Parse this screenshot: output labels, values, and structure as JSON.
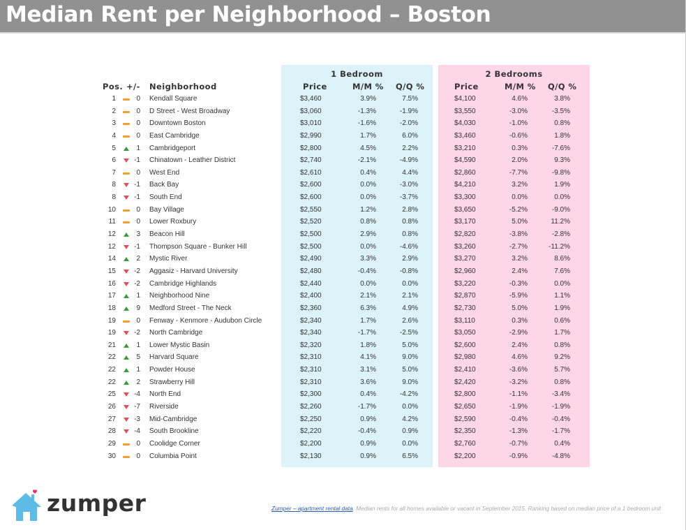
{
  "title": "Median Rent per Neighborhood – Boston",
  "headers": {
    "pos": "Pos.",
    "change": "+/-",
    "neighborhood": "Neighborhood",
    "group1": "1 Bedroom",
    "group2": "2 Bedrooms",
    "price": "Price",
    "mm": "M/M %",
    "qq": "Q/Q %"
  },
  "colors": {
    "panel1_bg": "#dcf3fa",
    "panel2_bg": "#fdd6e8",
    "up": "#3a9a3a",
    "down": "#d9535b",
    "flat": "#f0a030",
    "title_bg": "#919191"
  },
  "rows": [
    {
      "pos": "1",
      "trend": "flat",
      "change": "0",
      "name": "Kendall Square",
      "p1": "$3,460",
      "m1": "3.9%",
      "q1": "7.5%",
      "p2": "$4,100",
      "m2": "4.6%",
      "q2": "3.8%"
    },
    {
      "pos": "2",
      "trend": "flat",
      "change": "0",
      "name": "D Street - West Broadway",
      "p1": "$3,060",
      "m1": "-1.3%",
      "q1": "-1.9%",
      "p2": "$3,550",
      "m2": "-3.0%",
      "q2": "-3.5%"
    },
    {
      "pos": "3",
      "trend": "flat",
      "change": "0",
      "name": "Downtown Boston",
      "p1": "$3,010",
      "m1": "-1.6%",
      "q1": "-2.0%",
      "p2": "$4,030",
      "m2": "-1.0%",
      "q2": "0.8%"
    },
    {
      "pos": "4",
      "trend": "flat",
      "change": "0",
      "name": "East Cambridge",
      "p1": "$2,990",
      "m1": "1.7%",
      "q1": "6.0%",
      "p2": "$3,460",
      "m2": "-0.6%",
      "q2": "1.8%"
    },
    {
      "pos": "5",
      "trend": "up",
      "change": "1",
      "name": "Cambridgeport",
      "p1": "$2,800",
      "m1": "4.5%",
      "q1": "2.2%",
      "p2": "$3,210",
      "m2": "0.3%",
      "q2": "-7.6%"
    },
    {
      "pos": "6",
      "trend": "down",
      "change": "-1",
      "name": "Chinatown - Leather District",
      "p1": "$2,740",
      "m1": "-2.1%",
      "q1": "-4.9%",
      "p2": "$4,590",
      "m2": "2.0%",
      "q2": "9.3%"
    },
    {
      "pos": "7",
      "trend": "flat",
      "change": "0",
      "name": "West End",
      "p1": "$2,610",
      "m1": "0.4%",
      "q1": "4.4%",
      "p2": "$2,860",
      "m2": "-7.7%",
      "q2": "-9.8%"
    },
    {
      "pos": "8",
      "trend": "down",
      "change": "-1",
      "name": "Back Bay",
      "p1": "$2,600",
      "m1": "0.0%",
      "q1": "-3.0%",
      "p2": "$4,210",
      "m2": "3.2%",
      "q2": "1.9%"
    },
    {
      "pos": "8",
      "trend": "down",
      "change": "-1",
      "name": "South End",
      "p1": "$2,600",
      "m1": "0.0%",
      "q1": "-3.7%",
      "p2": "$3,300",
      "m2": "0.0%",
      "q2": "0.0%"
    },
    {
      "pos": "10",
      "trend": "flat",
      "change": "0",
      "name": "Bay Village",
      "p1": "$2,550",
      "m1": "1.2%",
      "q1": "2.8%",
      "p2": "$3,650",
      "m2": "-5.2%",
      "q2": "-9.0%"
    },
    {
      "pos": "11",
      "trend": "flat",
      "change": "0",
      "name": "Lower Roxbury",
      "p1": "$2,520",
      "m1": "0.8%",
      "q1": "0.8%",
      "p2": "$3,170",
      "m2": "5.0%",
      "q2": "11.2%"
    },
    {
      "pos": "12",
      "trend": "up",
      "change": "3",
      "name": "Beacon Hill",
      "p1": "$2,500",
      "m1": "2.9%",
      "q1": "0.8%",
      "p2": "$2,820",
      "m2": "-3.8%",
      "q2": "-2.8%"
    },
    {
      "pos": "12",
      "trend": "down",
      "change": "-1",
      "name": "Thompson Square - Bunker Hill",
      "p1": "$2,500",
      "m1": "0.0%",
      "q1": "-4.6%",
      "p2": "$3,260",
      "m2": "-2.7%",
      "q2": "-11.2%"
    },
    {
      "pos": "14",
      "trend": "up",
      "change": "2",
      "name": "Mystic River",
      "p1": "$2,490",
      "m1": "3.3%",
      "q1": "2.9%",
      "p2": "$3,270",
      "m2": "3.2%",
      "q2": "8.6%"
    },
    {
      "pos": "15",
      "trend": "down",
      "change": "-2",
      "name": "Aggasiz - Harvard University",
      "p1": "$2,480",
      "m1": "-0.4%",
      "q1": "-0.8%",
      "p2": "$2,960",
      "m2": "2.4%",
      "q2": "7.6%"
    },
    {
      "pos": "16",
      "trend": "down",
      "change": "-2",
      "name": "Cambridge Highlands",
      "p1": "$2,440",
      "m1": "0.0%",
      "q1": "0.0%",
      "p2": "$3,220",
      "m2": "-0.3%",
      "q2": "0.0%"
    },
    {
      "pos": "17",
      "trend": "up",
      "change": "1",
      "name": "Neighborhood Nine",
      "p1": "$2,400",
      "m1": "2.1%",
      "q1": "2.1%",
      "p2": "$2,870",
      "m2": "-5.9%",
      "q2": "1.1%"
    },
    {
      "pos": "18",
      "trend": "up",
      "change": "9",
      "name": "Medford Street - The Neck",
      "p1": "$2,360",
      "m1": "6.3%",
      "q1": "4.9%",
      "p2": "$2,730",
      "m2": "5.0%",
      "q2": "1.9%"
    },
    {
      "pos": "19",
      "trend": "flat",
      "change": "0",
      "name": "Fenway - Kenmore - Audubon Circle",
      "p1": "$2,340",
      "m1": "1.7%",
      "q1": "2.6%",
      "p2": "$3,110",
      "m2": "0.3%",
      "q2": "0.6%"
    },
    {
      "pos": "19",
      "trend": "down",
      "change": "-2",
      "name": "North Cambridge",
      "p1": "$2,340",
      "m1": "-1.7%",
      "q1": "-2.5%",
      "p2": "$3,050",
      "m2": "-2.9%",
      "q2": "1.7%"
    },
    {
      "pos": "21",
      "trend": "up",
      "change": "1",
      "name": "Lower Mystic Basin",
      "p1": "$2,320",
      "m1": "1.8%",
      "q1": "5.0%",
      "p2": "$2,600",
      "m2": "2.4%",
      "q2": "0.8%"
    },
    {
      "pos": "22",
      "trend": "up",
      "change": "5",
      "name": "Harvard Square",
      "p1": "$2,310",
      "m1": "4.1%",
      "q1": "9.0%",
      "p2": "$2,980",
      "m2": "4.6%",
      "q2": "9.2%"
    },
    {
      "pos": "22",
      "trend": "up",
      "change": "1",
      "name": "Powder House",
      "p1": "$2,310",
      "m1": "3.1%",
      "q1": "5.0%",
      "p2": "$2,410",
      "m2": "-3.6%",
      "q2": "5.7%"
    },
    {
      "pos": "22",
      "trend": "up",
      "change": "2",
      "name": "Strawberry Hill",
      "p1": "$2,310",
      "m1": "3.6%",
      "q1": "9.0%",
      "p2": "$2,420",
      "m2": "-3.2%",
      "q2": "0.8%"
    },
    {
      "pos": "25",
      "trend": "down",
      "change": "-4",
      "name": "North End",
      "p1": "$2,300",
      "m1": "0.4%",
      "q1": "-4.2%",
      "p2": "$2,800",
      "m2": "-1.1%",
      "q2": "-3.4%"
    },
    {
      "pos": "26",
      "trend": "down",
      "change": "-7",
      "name": "Riverside",
      "p1": "$2,260",
      "m1": "-1.7%",
      "q1": "0.0%",
      "p2": "$2,650",
      "m2": "-1.9%",
      "q2": "-1.9%"
    },
    {
      "pos": "27",
      "trend": "down",
      "change": "-3",
      "name": "Mid-Cambridge",
      "p1": "$2,250",
      "m1": "0.9%",
      "q1": "4.2%",
      "p2": "$2,590",
      "m2": "-0.4%",
      "q2": "-0.4%"
    },
    {
      "pos": "28",
      "trend": "down",
      "change": "-4",
      "name": "South Brookline",
      "p1": "$2,220",
      "m1": "-0.4%",
      "q1": "0.9%",
      "p2": "$2,350",
      "m2": "-1.3%",
      "q2": "-1.7%"
    },
    {
      "pos": "29",
      "trend": "flat",
      "change": "0",
      "name": "Coolidge Corner",
      "p1": "$2,200",
      "m1": "0.9%",
      "q1": "0.0%",
      "p2": "$2,760",
      "m2": "-0.7%",
      "q2": "0.4%"
    },
    {
      "pos": "30",
      "trend": "flat",
      "change": "0",
      "name": "Columbia Point",
      "p1": "$2,130",
      "m1": "0.9%",
      "q1": "6.5%",
      "p2": "$2,200",
      "m2": "-0.9%",
      "q2": "-4.8%"
    }
  ],
  "logo": {
    "text": "zumper",
    "icon": "house-heart-icon"
  },
  "footer": {
    "link_text": "Zumper – apartment rental data",
    "note": ". Median rents for all homes available or vacant in September 2015. Ranking based on median price of a 1 bedroom unit"
  }
}
